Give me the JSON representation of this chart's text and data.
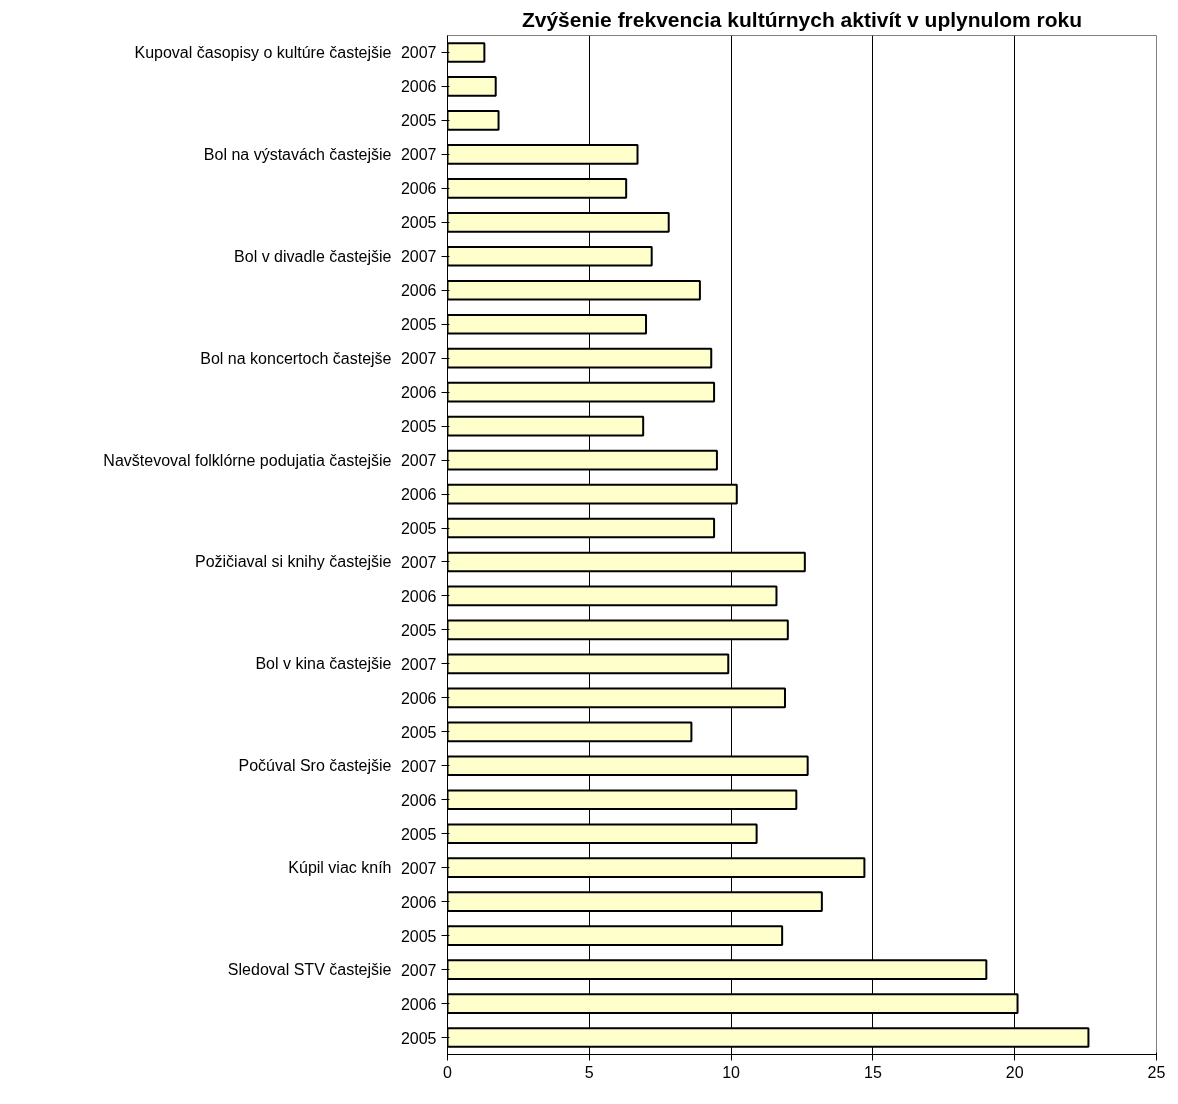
{
  "chart_data": {
    "type": "bar",
    "orientation": "horizontal",
    "title": "Zvýšenie frekvencia kultúrnych aktivít v uplynulom roku",
    "categories": [
      "2007",
      "2006",
      "2005",
      "2007",
      "2006",
      "2005",
      "2007",
      "2006",
      "2005",
      "2007",
      "2006",
      "2005",
      "2007",
      "2006",
      "2005",
      "2007",
      "2006",
      "2005",
      "2007",
      "2006",
      "2005",
      "2007",
      "2006",
      "2005",
      "2007",
      "2006",
      "2005",
      "2007",
      "2006",
      "2005"
    ],
    "values": [
      1.3,
      1.7,
      1.8,
      6.7,
      6.3,
      7.8,
      7.2,
      8.9,
      7.0,
      9.3,
      9.4,
      6.9,
      9.5,
      10.2,
      9.4,
      12.6,
      11.6,
      12.0,
      9.9,
      11.9,
      8.6,
      12.7,
      12.3,
      10.9,
      14.7,
      13.2,
      11.8,
      19.0,
      20.1,
      22.6
    ],
    "color": "#ffffcc",
    "annotations": [
      "Kupoval časopisy o kultúre častejšie",
      "Bol na výstavách častejšie",
      "Bol v divadle častejšie",
      "Bol na koncertoch častejše",
      "Navštevoval folklórne podujatia častejšie",
      "Požičiaval si knihy častejšie",
      "Bol v kina častejšie",
      "Počúval Sro častejšie",
      "Kúpil viac kníh",
      "Sledoval STV častejšie"
    ],
    "xlim": [
      0,
      25
    ],
    "xticks": [
      0,
      5,
      10,
      15,
      20,
      25
    ],
    "grid": "x"
  }
}
